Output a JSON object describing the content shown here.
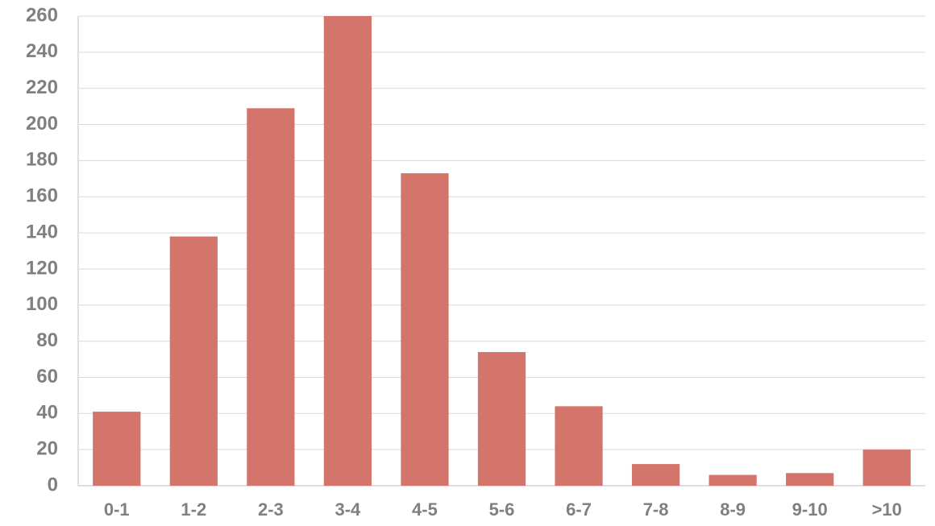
{
  "chart_data": {
    "type": "bar",
    "categories": [
      "0-1",
      "1-2",
      "2-3",
      "3-4",
      "4-5",
      "5-6",
      "6-7",
      "7-8",
      "8-9",
      "9-10",
      ">10"
    ],
    "values": [
      41,
      138,
      209,
      260,
      173,
      74,
      44,
      12,
      6,
      7,
      20
    ],
    "color": "#d4756b",
    "ylim": [
      0,
      260
    ],
    "yticks": [
      0,
      20,
      40,
      60,
      80,
      100,
      120,
      140,
      160,
      180,
      200,
      220,
      240,
      260
    ],
    "grid": true
  }
}
